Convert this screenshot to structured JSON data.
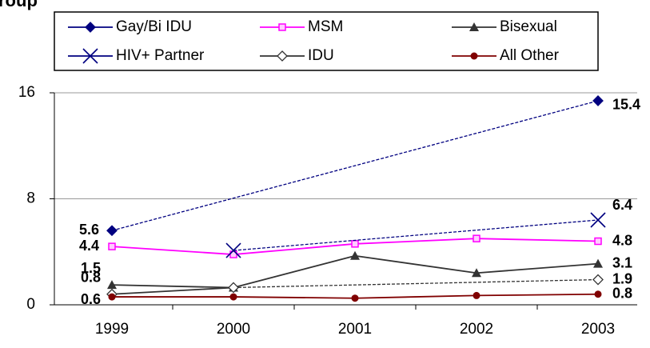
{
  "chart_data": {
    "type": "line",
    "title": "roup",
    "categories": [
      "1999",
      "2000",
      "2001",
      "2002",
      "2003"
    ],
    "ylim": [
      0,
      16
    ],
    "yticks": [
      0,
      8,
      16
    ],
    "grid": true,
    "legend": "top",
    "series": [
      {
        "name": "Gay/Bi IDU",
        "color": "#000080",
        "marker": "diamond",
        "dashed": true,
        "values": [
          5.6,
          null,
          null,
          null,
          15.4
        ],
        "label_points": [
          0,
          4
        ]
      },
      {
        "name": "MSM",
        "color": "#ff00ff",
        "marker": "square",
        "dashed": false,
        "values": [
          4.4,
          3.8,
          4.6,
          5.0,
          4.8
        ],
        "label_points": [
          0,
          4
        ]
      },
      {
        "name": "Bisexual",
        "color": "#333333",
        "marker": "triangle",
        "dashed": false,
        "values": [
          1.5,
          1.3,
          3.7,
          2.4,
          3.1
        ],
        "label_points": [
          0,
          4
        ]
      },
      {
        "name": "HIV+ Partner",
        "color": "#000080",
        "marker": "x",
        "dashed": true,
        "values": [
          null,
          4.1,
          null,
          null,
          6.4
        ],
        "label_points": [
          4
        ]
      },
      {
        "name": "IDU",
        "color": "#333333",
        "marker": "hollow-diamond",
        "dashed": true,
        "values": [
          0.8,
          1.3,
          null,
          null,
          1.9
        ],
        "label_points": [
          0,
          4
        ]
      },
      {
        "name": "All Other",
        "color": "#800000",
        "marker": "circle",
        "dashed": false,
        "values": [
          0.6,
          0.6,
          0.5,
          0.7,
          0.8
        ],
        "label_points": [
          0,
          4
        ]
      }
    ]
  }
}
